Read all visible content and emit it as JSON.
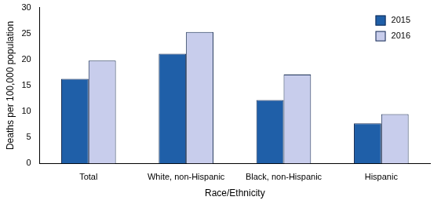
{
  "chart_data": {
    "type": "bar",
    "categories": [
      "Total",
      "White, non-Hispanic",
      "Black, non-Hispanic",
      "Hispanic"
    ],
    "series": [
      {
        "name": "2015",
        "color": "#1f5fa8",
        "values": [
          16.3,
          21.1,
          12.2,
          7.7
        ]
      },
      {
        "name": "2016",
        "color": "#c8cdec",
        "values": [
          19.8,
          25.3,
          17.1,
          9.5
        ]
      }
    ],
    "x_label": "Race/Ethnicity",
    "y_label": "Deaths per 100,000 population",
    "ylim": [
      0,
      30
    ],
    "yticks": [
      0,
      5,
      10,
      15,
      20,
      25,
      30
    ],
    "grid": false,
    "legend": "upper right"
  }
}
